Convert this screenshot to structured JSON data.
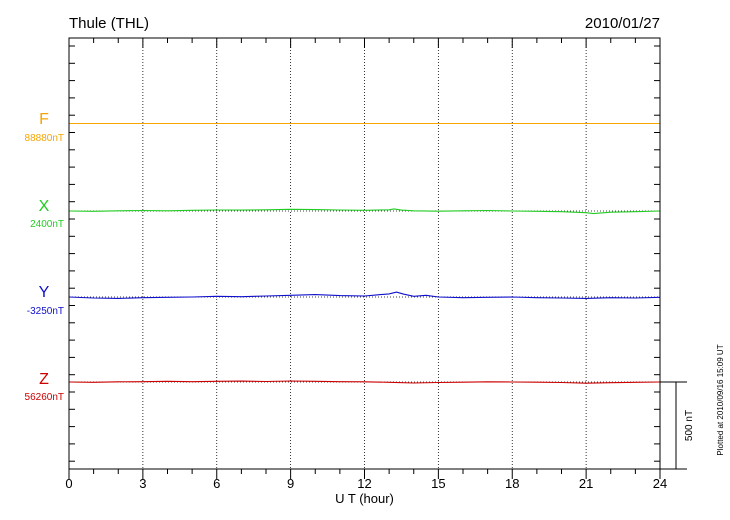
{
  "header": {
    "station": "Thule (THL)",
    "date": "2010/01/27"
  },
  "side_note": "Plotted at 2010/09/16 15:09 UT",
  "chart_data": {
    "type": "line",
    "title": "Thule (THL)",
    "date": "2010/01/27",
    "xlabel": "U T (hour)",
    "xlim": [
      0,
      24
    ],
    "xticks": [
      0,
      3,
      6,
      9,
      12,
      15,
      18,
      21,
      24
    ],
    "grid_x": true,
    "scale_bar": {
      "label": "500 nT",
      "value": 500
    },
    "series": [
      {
        "name": "F",
        "baseline_label": "88880nT",
        "baseline": 88880,
        "color": "#f5a500",
        "x": [
          0,
          2,
          4,
          6,
          8,
          10,
          12,
          14,
          16,
          18,
          20,
          22,
          24
        ],
        "values": [
          88880,
          88880,
          88880,
          88880,
          88880,
          88880,
          88880,
          88880,
          88880,
          88880,
          88880,
          88880,
          88880
        ]
      },
      {
        "name": "X",
        "baseline_label": "2400nT",
        "baseline": 2400,
        "color": "#22cc22",
        "x": [
          0,
          1,
          2,
          3,
          4,
          5,
          6,
          7,
          8,
          9,
          10,
          11,
          12,
          13,
          13.2,
          13.5,
          14,
          15,
          16,
          17,
          18,
          19,
          20,
          21,
          21.3,
          22,
          23,
          24
        ],
        "values": [
          2400,
          2398,
          2401,
          2403,
          2401,
          2404,
          2406,
          2405,
          2407,
          2410,
          2408,
          2406,
          2404,
          2407,
          2412,
          2405,
          2401,
          2399,
          2401,
          2403,
          2400,
          2398,
          2396,
          2390,
          2385,
          2393,
          2396,
          2400
        ]
      },
      {
        "name": "Y",
        "baseline_label": "-3250nT",
        "baseline": -3250,
        "color": "#1010cc",
        "x": [
          0,
          1,
          2,
          3,
          4,
          5,
          6,
          7,
          8,
          9,
          10,
          11,
          12,
          12.5,
          13,
          13.3,
          13.6,
          14,
          14.5,
          15,
          16,
          17,
          18,
          19,
          20,
          21,
          22,
          23,
          24
        ],
        "values": [
          -3250,
          -3256,
          -3258,
          -3254,
          -3252,
          -3250,
          -3246,
          -3248,
          -3244,
          -3240,
          -3236,
          -3242,
          -3244,
          -3238,
          -3232,
          -3222,
          -3234,
          -3246,
          -3240,
          -3250,
          -3254,
          -3252,
          -3250,
          -3254,
          -3256,
          -3258,
          -3254,
          -3256,
          -3252
        ]
      },
      {
        "name": "Z",
        "baseline_label": "56260nT",
        "baseline": 56260,
        "color": "#cc0000",
        "x": [
          0,
          1,
          2,
          3,
          4,
          5,
          6,
          7,
          8,
          9,
          10,
          11,
          12,
          13,
          14,
          15,
          16,
          17,
          18,
          19,
          20,
          21,
          22,
          23,
          24
        ],
        "values": [
          56260,
          56258,
          56261,
          56262,
          56264,
          56262,
          56264,
          56265,
          56263,
          56266,
          56264,
          56262,
          56261,
          56258,
          56254,
          56257,
          56259,
          56261,
          56260,
          56259,
          56257,
          56253,
          56256,
          56258,
          56260
        ]
      }
    ]
  }
}
